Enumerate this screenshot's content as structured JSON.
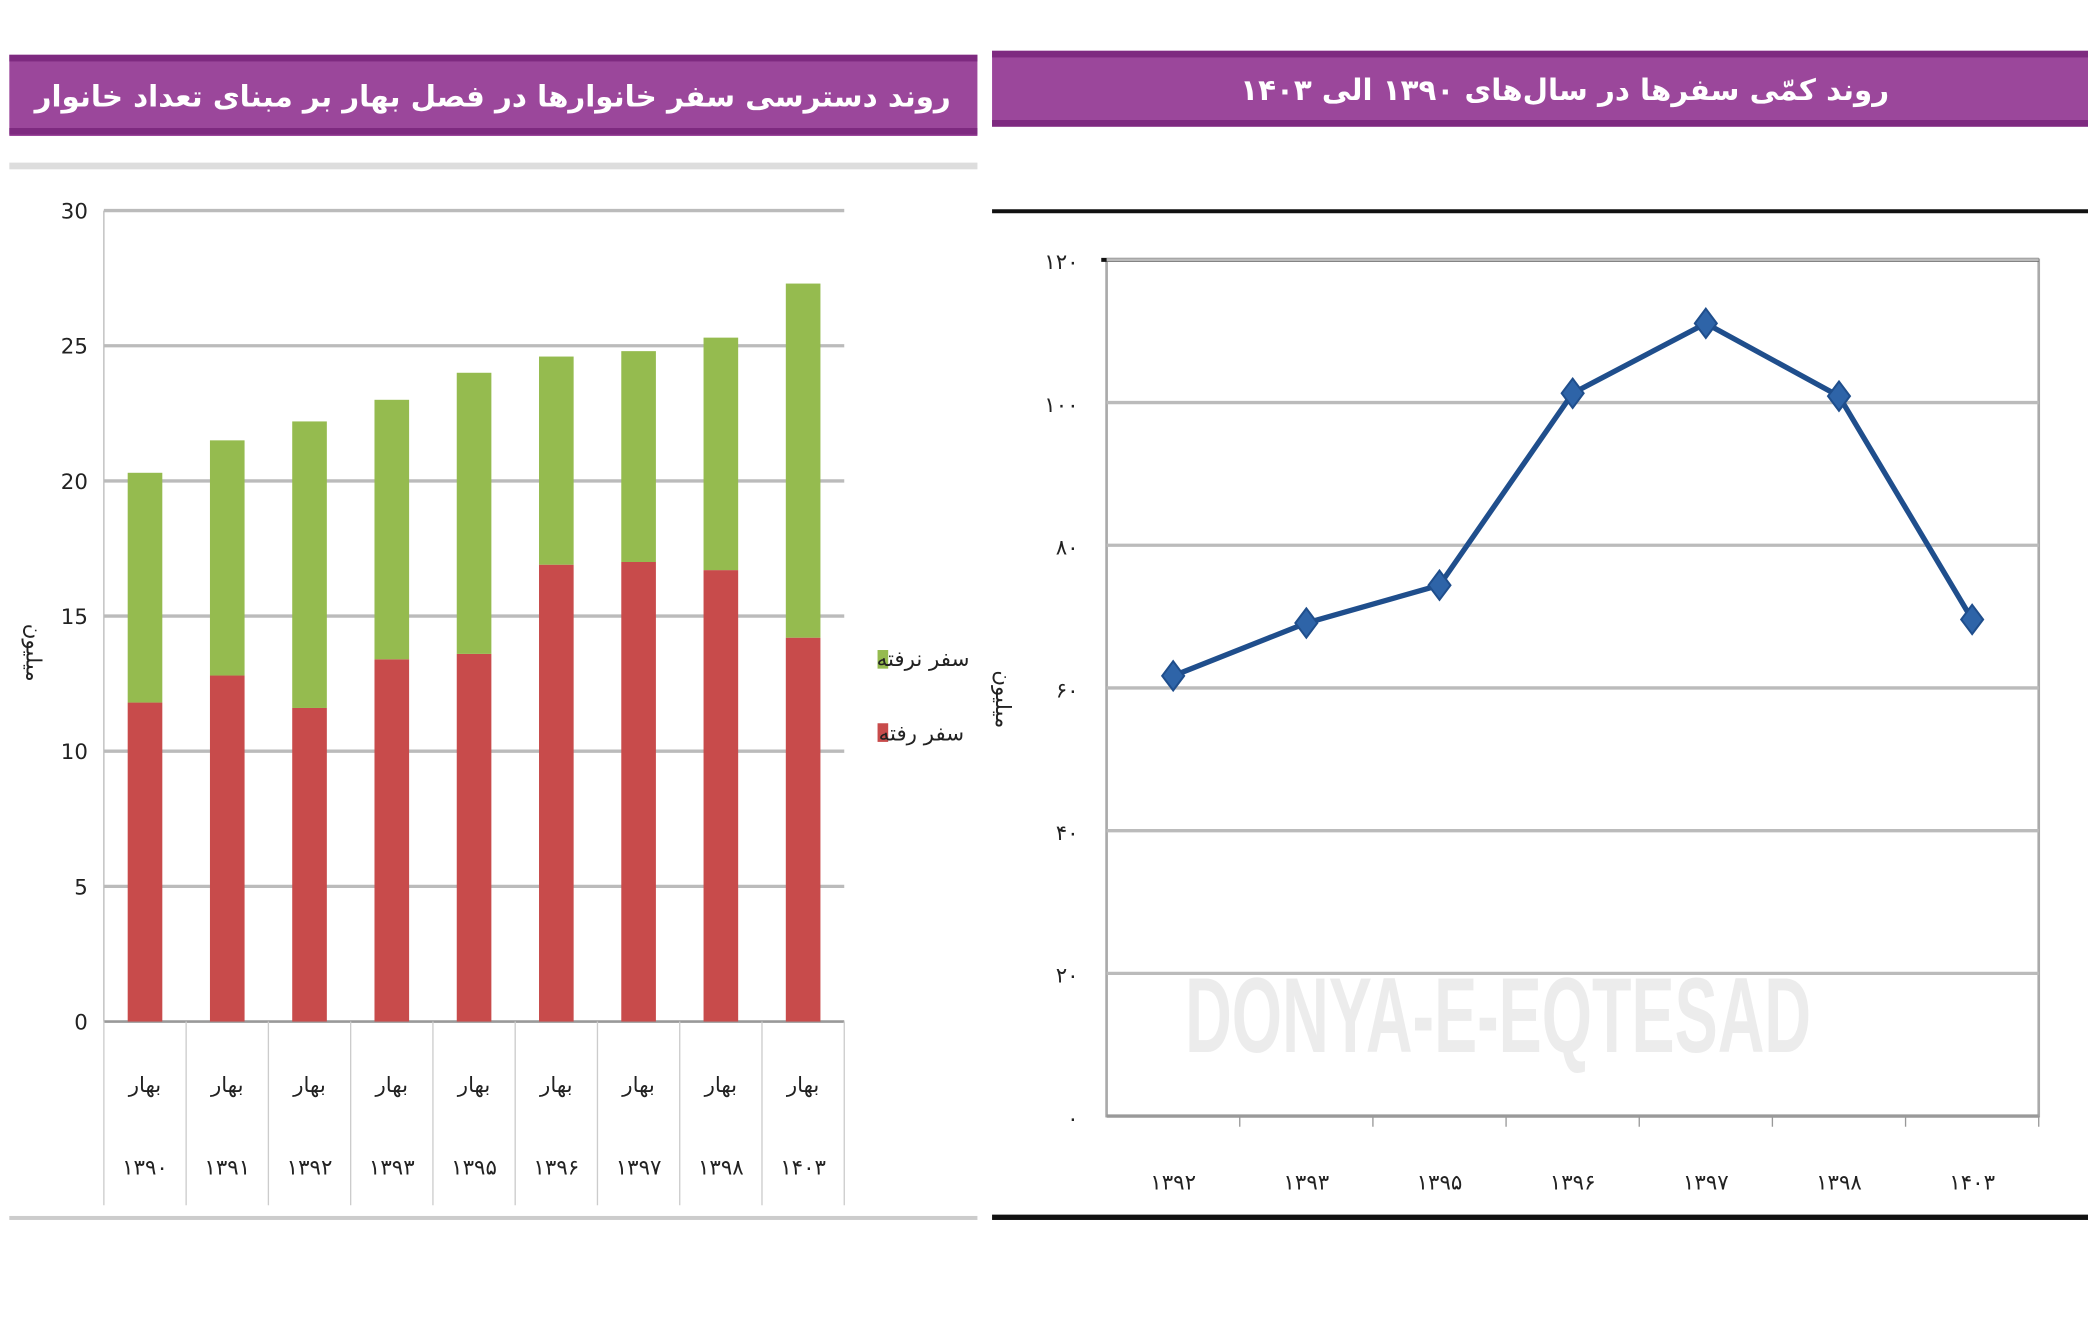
{
  "colors": {
    "banner": "#9b479b",
    "banner_edge": "#7e2a80",
    "went": "#c84b4b",
    "not_went": "#95bb4f",
    "line": "#1f4e8c"
  },
  "watermark": "DONYA-E-EQTESAD",
  "chart_data": [
    {
      "type": "bar",
      "stacked": true,
      "title": "روند دسترسی سفر خانوارها در فصل بهار بر مبنای تعداد خانوار",
      "ylabel": "میلیون",
      "ylim": [
        0,
        30
      ],
      "yticks": [
        "0",
        "5",
        "10",
        "15",
        "20",
        "25",
        "30"
      ],
      "grid": true,
      "legend_position": "right",
      "season_label": "بهار",
      "categories": [
        "۱۳۹۰",
        "۱۳۹۱",
        "۱۳۹۲",
        "۱۳۹۳",
        "۱۳۹۵",
        "۱۳۹۶",
        "۱۳۹۷",
        "۱۳۹۸",
        "۱۴۰۳"
      ],
      "series": [
        {
          "name": "سفر رفته",
          "values": [
            11.8,
            12.8,
            11.6,
            13.4,
            13.6,
            16.9,
            17.0,
            16.7,
            14.2
          ]
        },
        {
          "name": "سفر نرفته",
          "values": [
            8.5,
            8.7,
            10.6,
            9.6,
            10.4,
            7.7,
            7.8,
            8.6,
            13.1
          ]
        }
      ]
    },
    {
      "type": "line",
      "title": "روند کمّی سفرها در سال‌های ۱۳۹۰ الی ۱۴۰۳",
      "ylabel": "میلیون",
      "ylim": [
        0,
        120
      ],
      "yticks": [
        "۰",
        "۲۰",
        "۴۰",
        "۶۰",
        "۸۰",
        "۱۰۰",
        "۱۲۰"
      ],
      "grid": true,
      "marker": "diamond",
      "categories": [
        "۱۳۹۲",
        "۱۳۹۳",
        "۱۳۹۵",
        "۱۳۹۶",
        "۱۳۹۷",
        "۱۳۹۸",
        "۱۴۰۳"
      ],
      "values": [
        61.7,
        69.1,
        74.4,
        101.3,
        111.1,
        100.9,
        69.6
      ]
    }
  ]
}
